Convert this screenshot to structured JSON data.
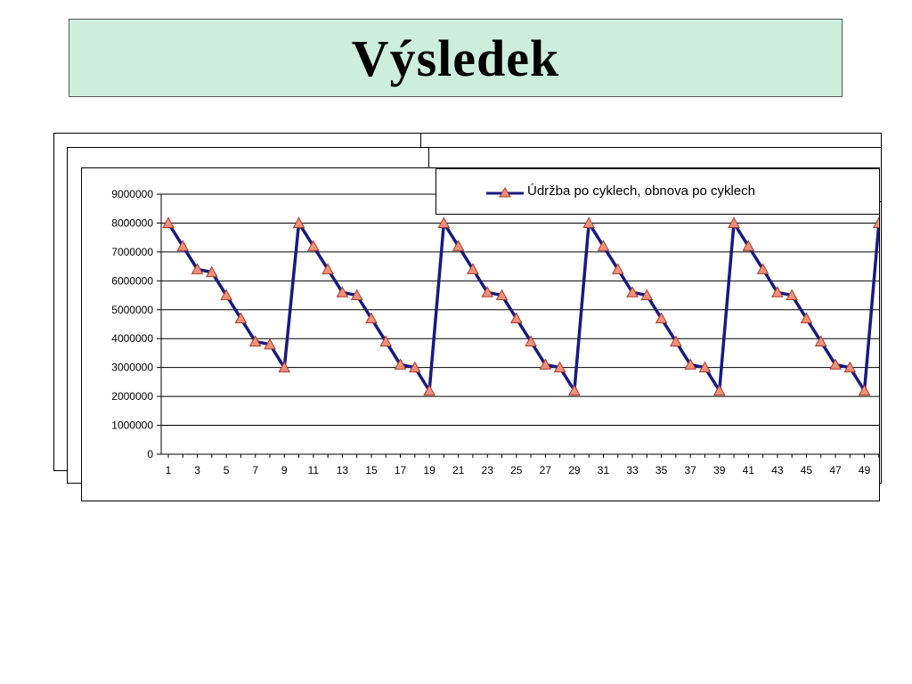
{
  "slide": {
    "title": "Výsledek"
  },
  "colors": {
    "title_bg": "#cdeedd",
    "line": "#1a1a80",
    "marker_fill": "#f0907a",
    "marker_stroke": "#a83a2a"
  },
  "chart_data": {
    "type": "line",
    "title": "",
    "xlabel": "",
    "ylabel": "",
    "ylim": [
      0,
      9000000
    ],
    "yticks": [
      0,
      1000000,
      2000000,
      3000000,
      4000000,
      5000000,
      6000000,
      7000000,
      8000000,
      9000000
    ],
    "x": [
      1,
      2,
      3,
      4,
      5,
      6,
      7,
      8,
      9,
      10,
      11,
      12,
      13,
      14,
      15,
      16,
      17,
      18,
      19,
      20,
      21,
      22,
      23,
      24,
      25,
      26,
      27,
      28,
      29,
      30,
      31,
      32,
      33,
      34,
      35,
      36,
      37,
      38,
      39,
      40,
      41,
      42,
      43,
      44,
      45,
      46,
      47,
      48,
      49,
      50
    ],
    "xtick_labels": [
      "1",
      "3",
      "5",
      "7",
      "9",
      "11",
      "13",
      "15",
      "17",
      "19",
      "21",
      "23",
      "25",
      "27",
      "29",
      "31",
      "33",
      "35",
      "37",
      "39",
      "41",
      "43",
      "45",
      "47",
      "49"
    ],
    "grid": "horizontal",
    "legend_position": "top-right",
    "series": [
      {
        "name": "Údržba po cyklech, obnova po cyklech",
        "marker": "triangle",
        "values": [
          8000000,
          7200000,
          6400000,
          6300000,
          5500000,
          4700000,
          3900000,
          3800000,
          3000000,
          8000000,
          7200000,
          6400000,
          5600000,
          5500000,
          4700000,
          3900000,
          3100000,
          3000000,
          2200000,
          8000000,
          7200000,
          6400000,
          5600000,
          5500000,
          4700000,
          3900000,
          3100000,
          3000000,
          2200000,
          8000000,
          7200000,
          6400000,
          5600000,
          5500000,
          4700000,
          3900000,
          3100000,
          3000000,
          2200000,
          8000000,
          7200000,
          6400000,
          5600000,
          5500000,
          4700000,
          3900000,
          3100000,
          3000000,
          2200000,
          8000000
        ]
      }
    ]
  }
}
